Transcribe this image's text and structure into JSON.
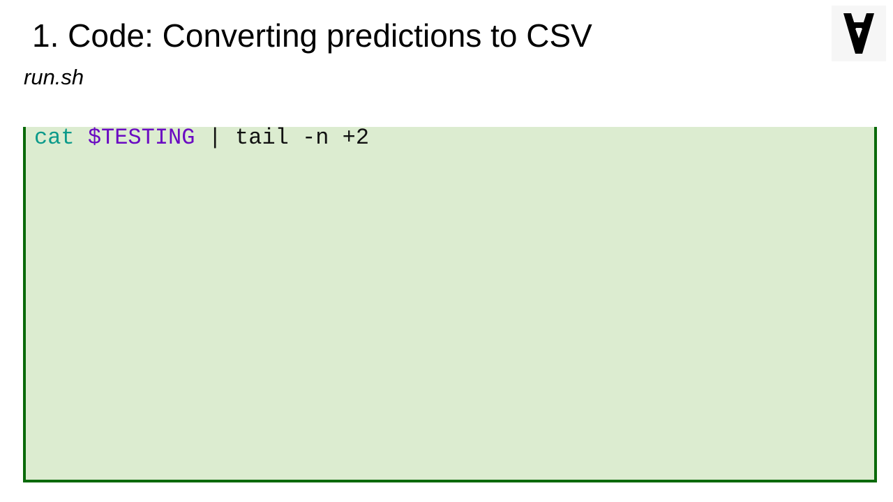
{
  "slide": {
    "title": "1. Code: Converting predictions to CSV",
    "file_name": "run.sh"
  },
  "code": {
    "lines": [
      {
        "command": "cat",
        "sep1": " ",
        "variable": "$TESTING",
        "rest": " | tail -n +2"
      }
    ]
  },
  "colors": {
    "code_background": "#dcecd0",
    "code_border": "#0a6a0a",
    "command": "#0b9a8a",
    "variable": "#6a0ac2"
  },
  "icons": {
    "logo": "turned-a-logo-icon"
  }
}
